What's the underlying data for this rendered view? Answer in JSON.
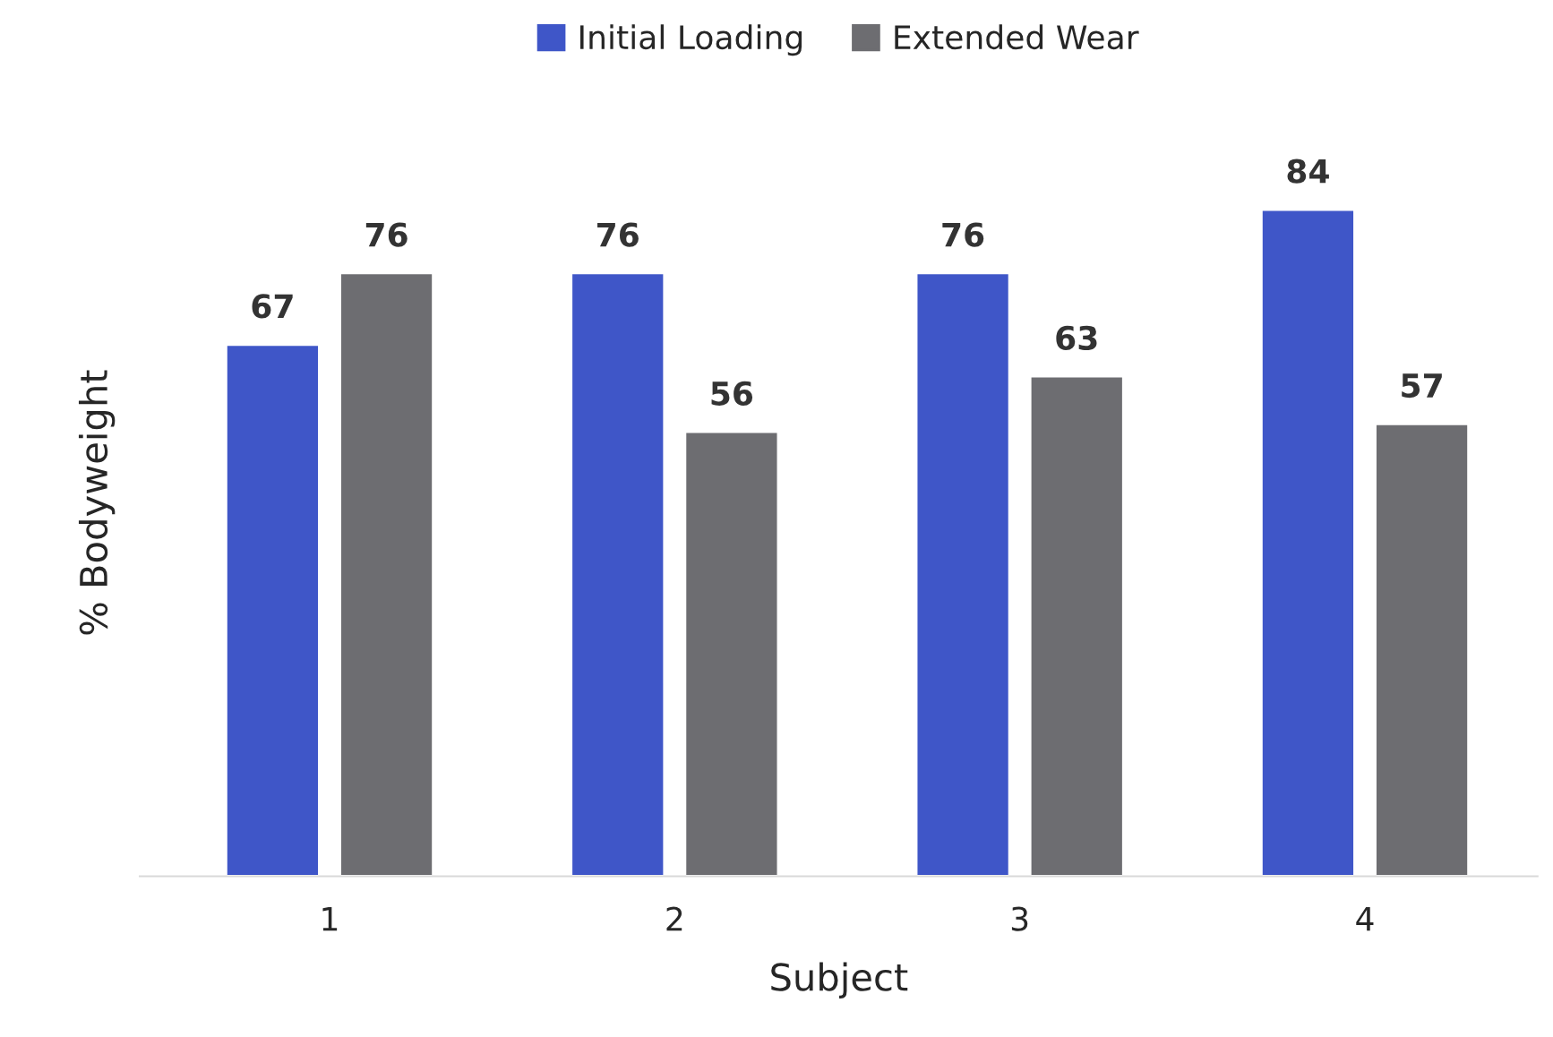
{
  "chart_data": {
    "type": "bar",
    "xlabel": "Subject",
    "ylabel": "% Bodyweight",
    "categories": [
      "1",
      "2",
      "3",
      "4"
    ],
    "series": [
      {
        "name": "Initial Loading",
        "color": "#3f56c8",
        "values": [
          67,
          76,
          76,
          84
        ]
      },
      {
        "name": "Extended Wear",
        "color": "#6d6d71",
        "values": [
          76,
          56,
          63,
          57
        ]
      }
    ],
    "data_labels": true,
    "legend": "top",
    "grid": false
  }
}
